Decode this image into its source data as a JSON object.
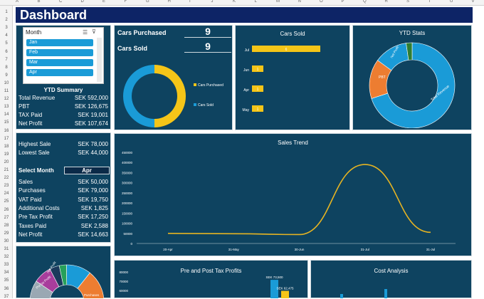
{
  "sheet": {
    "columns": [
      "A",
      "B",
      "C",
      "D",
      "E",
      "F",
      "G",
      "H",
      "I",
      "J",
      "K",
      "L",
      "M",
      "N",
      "O",
      "P",
      "Q",
      "R",
      "S",
      "T",
      "U",
      "V"
    ],
    "rows": [
      "1",
      "2",
      "3",
      "4",
      "5",
      "6",
      "7",
      "8",
      "9",
      "10",
      "11",
      "12",
      "13",
      "14",
      "15",
      "16",
      "17",
      "18",
      "19",
      "20",
      "21",
      "22",
      "23",
      "24",
      "25",
      "26",
      "27",
      "28",
      "29",
      "30",
      "31",
      "32",
      "33",
      "34",
      "35",
      "36",
      "37"
    ]
  },
  "title": "Dashboard",
  "slicer": {
    "header": "Month",
    "items": [
      "Jan",
      "Feb",
      "Mar",
      "Apr"
    ],
    "selected": "Apr"
  },
  "ytd_summary": {
    "title": "YTD Summary",
    "rows": [
      {
        "label": "Total Revenue",
        "value": "SEK 592,000"
      },
      {
        "label": "PBT",
        "value": "SEK 126,675"
      },
      {
        "label": "TAX Paid",
        "value": "SEK 19,001"
      },
      {
        "label": "Net Profit",
        "value": "SEK 107,674"
      }
    ]
  },
  "sales_extremes": {
    "rows": [
      {
        "label": "Highest Sale",
        "value": "SEK 78,000"
      },
      {
        "label": "Lowest Sale",
        "value": "SEK 44,000"
      }
    ]
  },
  "select_month": {
    "label": "Select Month",
    "value": "Apr",
    "rows": [
      {
        "label": "Sales",
        "value": "SEK 50,000"
      },
      {
        "label": "Purchases",
        "value": "SEK 79,000"
      },
      {
        "label": "VAT Paid",
        "value": "SEK 19,750"
      },
      {
        "label": "Additional Costs",
        "value": "SEK 1,825"
      },
      {
        "label": "Pre Tax Profit",
        "value": "SEK 17,250"
      },
      {
        "label": "Taxes Paid",
        "value": "SEK 2,588"
      },
      {
        "label": "Net Profit",
        "value": "SEK 14,663"
      }
    ]
  },
  "kpis": {
    "cars_purchased_label": "Cars Purchased",
    "cars_purchased_value": "9",
    "cars_sold_label": "Cars Sold",
    "cars_sold_value": "9"
  },
  "colors": {
    "panel": "#0e4360",
    "title_bar": "#0d2466",
    "accent_yellow": "#f5c518",
    "accent_blue": "#1a9bd7",
    "accent_orange": "#ed7d31",
    "accent_green": "#2e7d32"
  },
  "chart_data": [
    {
      "id": "cars_donut",
      "type": "pie",
      "title": "",
      "labels": [
        "Cars Purchased",
        "Cars Sold"
      ],
      "values": [
        9,
        9
      ],
      "colors": [
        "#f5c518",
        "#1a9bd7"
      ],
      "legend": "right"
    },
    {
      "id": "cars_sold_bar",
      "type": "bar",
      "orientation": "horizontal",
      "title": "Cars Sold",
      "categories": [
        "Jul",
        "Jun",
        "Apr",
        "May"
      ],
      "values": [
        6,
        1,
        1,
        1
      ],
      "color": "#f5c518"
    },
    {
      "id": "ytd_stats",
      "type": "pie",
      "title": "YTD Stats",
      "labels": [
        "Total Revenue",
        "PBT",
        "Net Profit",
        "Tax Paid"
      ],
      "values": [
        592000,
        126675,
        107674,
        19001
      ],
      "colors": [
        "#1a9bd7",
        "#ed7d31",
        "#1a9bd7",
        "#2e7d32"
      ]
    },
    {
      "id": "sales_trend",
      "type": "line",
      "title": "Sales Trend",
      "x": [
        "20-Apr",
        "31-May",
        "30-Jun",
        "31-Jul",
        "31-Jul"
      ],
      "values": [
        50000,
        48000,
        44000,
        390000,
        55000
      ],
      "ylim": [
        0,
        450000
      ],
      "yticks": [
        "0",
        "50000",
        "100000",
        "150000",
        "200000",
        "250000",
        "300000",
        "350000",
        "400000",
        "450000"
      ],
      "color": "#e6b422"
    },
    {
      "id": "pre_post_tax",
      "type": "bar",
      "title": "Pre and Post Tax Profits",
      "yticks": [
        "80000",
        "70000",
        "60000"
      ],
      "data_labels": [
        "SEK 73,500",
        "SEK 62,475"
      ],
      "values": [
        73500,
        62475
      ],
      "colors": [
        "#1a9bd7",
        "#f5c518"
      ]
    },
    {
      "id": "cost_analysis",
      "type": "bar",
      "title": "Cost Analysis",
      "values": [],
      "colors": [
        "#1a9bd7"
      ]
    },
    {
      "id": "expense_donut",
      "type": "pie",
      "title": "",
      "labels": [
        "Net Profit",
        "PreTax Profit",
        "Purchases"
      ],
      "colors": [
        "#1b3a5c",
        "#a83d9c",
        "#ed7d31"
      ]
    }
  ]
}
